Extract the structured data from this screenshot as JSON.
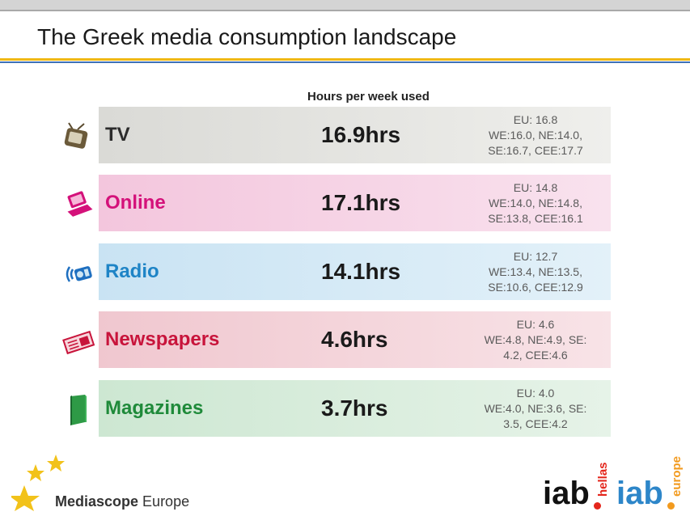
{
  "slide": {
    "title": "The Greek media consumption landscape",
    "column_header": "Hours per week used"
  },
  "rows": [
    {
      "label": "TV",
      "hours": "16.9hrs",
      "stats": [
        "EU: 16.8",
        "WE:16.0, NE:14.0,",
        "SE:16.7, CEE:17.7"
      ],
      "icon": "tv-icon",
      "label_color": "#2b2b2b",
      "bg": "#e2e2e2"
    },
    {
      "label": "Online",
      "hours": "17.1hrs",
      "stats": [
        "EU: 14.8",
        "WE:14.0, NE:14.8,",
        "SE:13.8, CEE:16.1"
      ],
      "icon": "laptop-icon",
      "label_color": "#d4117a",
      "bg": "#f6cfe3"
    },
    {
      "label": "Radio",
      "hours": "14.1hrs",
      "stats": [
        "EU: 12.7",
        "WE:13.4, NE:13.5,",
        "SE:10.6, CEE:12.9"
      ],
      "icon": "radio-icon",
      "label_color": "#1e84c6",
      "bg": "#cfe6f4"
    },
    {
      "label": "Newspapers",
      "hours": "4.6hrs",
      "stats": [
        "EU: 4.6",
        "WE:4.8, NE:4.9, SE:",
        "4.2, CEE:4.6"
      ],
      "icon": "newspaper-icon",
      "label_color": "#c8143b",
      "bg": "#f3cfd5"
    },
    {
      "label": "Magazines",
      "hours": "3.7hrs",
      "stats": [
        "EU: 4.0",
        "WE:4.0, NE:3.6, SE:",
        "3.5, CEE:4.2"
      ],
      "icon": "magazine-icon",
      "label_color": "#1f8a3a",
      "bg": "#d4ebd8"
    }
  ],
  "footer": {
    "brand_bold": "Mediascope",
    "brand_rest": " Europe",
    "iab1": "iab",
    "iab1_sub": "hellas",
    "iab2": "iab",
    "iab2_sub": "europe"
  }
}
